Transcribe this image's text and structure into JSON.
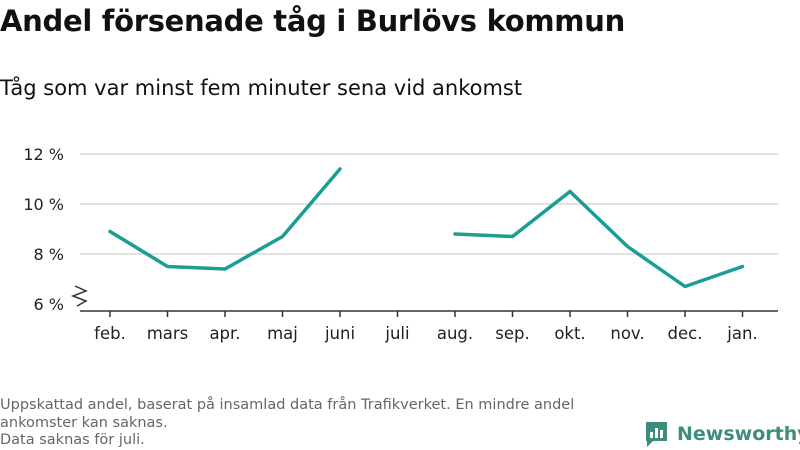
{
  "title": "Andel försenade tåg i Burlövs kommun",
  "subtitle": "Tåg som var minst fem minuter sena vid ankomst",
  "footnote": {
    "line1": "Uppskattad andel, baserat på insamlad data från Trafikverket. En mindre andel ankomster kan saknas.",
    "line2": "Data saknas för juli."
  },
  "brand": {
    "name": "Newsworthy",
    "color": "#3d8c7c"
  },
  "colors": {
    "line": "#1a9e92",
    "grid": "#d8d8d8",
    "axis": "#333333",
    "text": "#222222"
  },
  "chart_data": {
    "type": "line",
    "categories": [
      "feb.",
      "mars",
      "apr.",
      "maj",
      "juni",
      "juli",
      "aug.",
      "sep.",
      "okt.",
      "nov.",
      "dec.",
      "jan."
    ],
    "values": [
      8.9,
      7.5,
      7.4,
      8.7,
      11.4,
      null,
      8.8,
      8.7,
      10.5,
      8.3,
      6.7,
      7.5
    ],
    "ylim": [
      6,
      12
    ],
    "yticks": [
      6,
      8,
      10,
      12
    ],
    "ytick_labels": [
      "6 %",
      "8 %",
      "10 %",
      "12 %"
    ],
    "axis_break": true,
    "grid": true
  }
}
